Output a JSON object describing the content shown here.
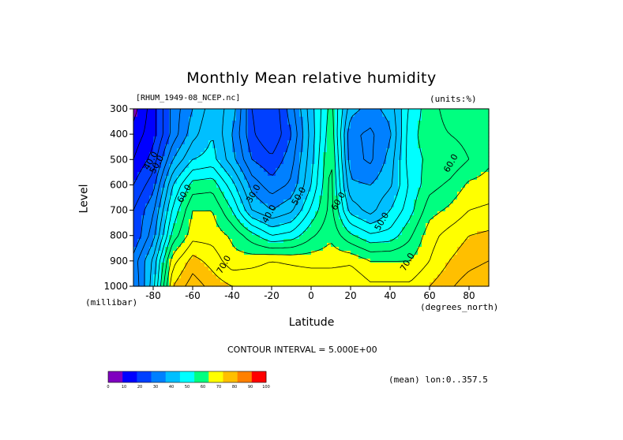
{
  "chart_data": {
    "type": "heatmap",
    "title": "Monthly Mean relative humidity",
    "dataset_label": "[RHUM_1949-08_NCEP.nc]",
    "units_label": "(units:%)",
    "ylabel": "Level",
    "ylabel_units": "(millibar)",
    "xlabel": "Latitude",
    "xlabel_units": "(degrees_north)",
    "contour_note": "CONTOUR INTERVAL = 5.000E+00",
    "mean_note": "(mean) lon:0..357.5",
    "xlim": [
      -90,
      90
    ],
    "ylim": [
      1000,
      300
    ],
    "y_reversed": true,
    "x_ticks": [
      -80,
      -60,
      -40,
      -20,
      0,
      20,
      40,
      60,
      80
    ],
    "x_tick_labels": [
      "-80",
      "-60",
      "-40",
      "-20",
      "0",
      "20",
      "40",
      "60",
      "80"
    ],
    "y_ticks": [
      300,
      400,
      500,
      600,
      700,
      800,
      900,
      1000
    ],
    "y_tick_labels": [
      "300",
      "400",
      "500",
      "600",
      "700",
      "800",
      "900",
      "1000"
    ],
    "contour_interval": 5,
    "levels": [
      0,
      10,
      20,
      30,
      40,
      50,
      60,
      70,
      80,
      90,
      100
    ],
    "colorbar_colors": [
      "#7f00bf",
      "#0000ff",
      "#0040ff",
      "#0080ff",
      "#00bfff",
      "#00ffff",
      "#00ff80",
      "#ffff00",
      "#ffbf00",
      "#ff8000",
      "#ff0000"
    ],
    "contour_labels": [
      {
        "text": "40.0",
        "lat": -80,
        "lev": 510
      },
      {
        "text": "50.0",
        "lat": -77,
        "lev": 525
      },
      {
        "text": "60.0",
        "lat": -63,
        "lev": 640
      },
      {
        "text": "70.0",
        "lat": -43,
        "lev": 920
      },
      {
        "text": "30.0",
        "lat": -28,
        "lev": 640
      },
      {
        "text": "40.0",
        "lat": -20,
        "lev": 720
      },
      {
        "text": "50.0",
        "lat": -5,
        "lev": 650
      },
      {
        "text": "60.0",
        "lat": 15,
        "lev": 670
      },
      {
        "text": "50.0",
        "lat": 37,
        "lev": 750
      },
      {
        "text": "70.0",
        "lat": 50,
        "lev": 910
      },
      {
        "text": "60.0",
        "lat": 72,
        "lev": 520
      }
    ],
    "lats": [
      -90,
      -80,
      -70,
      -60,
      -50,
      -40,
      -30,
      -20,
      -10,
      0,
      10,
      20,
      30,
      40,
      50,
      60,
      70,
      80,
      90
    ],
    "levs": [
      300,
      400,
      500,
      600,
      700,
      800,
      900,
      1000
    ],
    "values": [
      [
        8,
        18,
        32,
        40,
        48,
        43,
        25,
        20,
        33,
        48,
        62,
        42,
        38,
        42,
        56,
        63,
        67,
        67,
        67
      ],
      [
        12,
        18,
        32,
        43,
        50,
        40,
        26,
        20,
        30,
        47,
        64,
        36,
        34,
        39,
        58,
        63,
        65,
        67,
        67
      ],
      [
        15,
        22,
        40,
        50,
        52,
        42,
        30,
        26,
        33,
        48,
        66,
        37,
        34,
        42,
        58,
        61,
        61,
        65,
        69
      ],
      [
        20,
        28,
        50,
        62,
        63,
        52,
        38,
        32,
        36,
        50,
        67,
        41,
        40,
        44,
        56,
        63,
        66,
        71,
        72
      ],
      [
        25,
        34,
        56,
        70,
        70,
        60,
        45,
        40,
        44,
        56,
        67,
        48,
        43,
        50,
        58,
        68,
        71,
        75,
        76
      ],
      [
        25,
        38,
        62,
        73,
        73,
        69,
        62,
        55,
        57,
        64,
        69,
        61,
        56,
        57,
        64,
        73,
        77,
        80,
        81
      ],
      [
        32,
        46,
        73,
        82,
        78,
        72,
        73,
        75,
        74,
        73,
        73,
        74,
        70,
        70,
        70,
        75,
        80,
        83,
        85
      ],
      [
        30,
        48,
        80,
        88,
        83,
        80,
        80,
        80,
        80,
        80,
        80,
        80,
        76,
        76,
        76,
        80,
        84,
        88,
        90
      ]
    ]
  }
}
